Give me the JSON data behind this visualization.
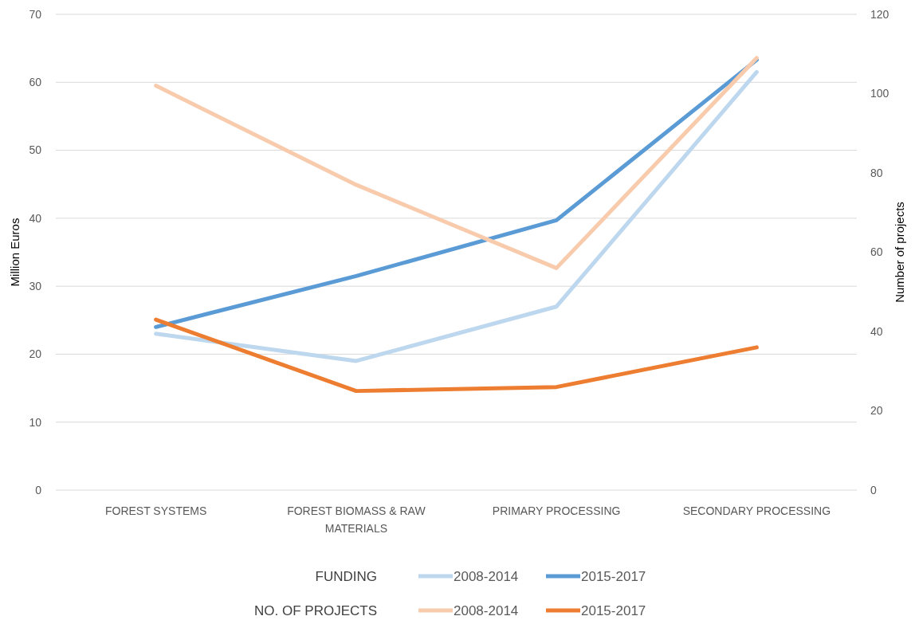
{
  "chart_data": {
    "type": "line",
    "categories": [
      "FOREST SYSTEMS",
      "FOREST BIOMASS & RAW MATERIALS",
      "PRIMARY PROCESSING",
      "SECONDARY PROCESSING"
    ],
    "ylabel": "Million Euros",
    "y2label": "Number of projects",
    "ylim": [
      0,
      70
    ],
    "yticks": [
      0,
      10,
      20,
      30,
      40,
      50,
      60,
      70
    ],
    "y2lim": [
      0,
      120
    ],
    "y2ticks": [
      0,
      20,
      40,
      60,
      80,
      100,
      120
    ],
    "grid": "y",
    "legend": "bottom",
    "line_style": "solid",
    "annotations": [
      "FUNDING",
      "NO. OF PROJECTS"
    ],
    "series": [
      {
        "name": "2008-2014",
        "color": "#bdd7ee",
        "values": [
          23,
          19,
          27,
          61.5
        ]
      },
      {
        "name": "2015-2017",
        "color": "#5b9bd5",
        "values": [
          24,
          31.5,
          39.7,
          63.3
        ]
      },
      {
        "name": "2008-2014",
        "color": "#f8cbad",
        "values": [
          102,
          77,
          56,
          109
        ],
        "axis": "y2"
      },
      {
        "name": "2015-2017",
        "color": "#ed7d31",
        "values": [
          43,
          25,
          26,
          36
        ],
        "axis": "y2"
      }
    ]
  }
}
